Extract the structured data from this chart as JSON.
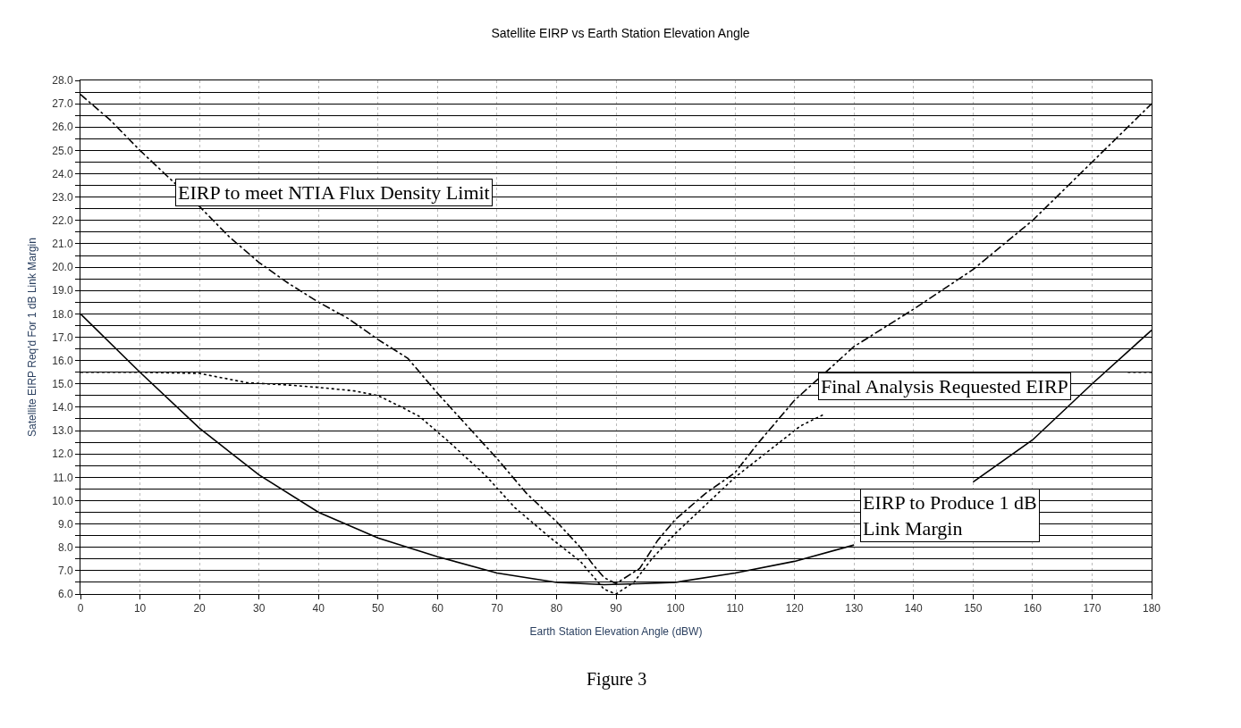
{
  "chart_data": {
    "type": "line",
    "title": "Satellite EIRP vs Earth Station Elevation Angle",
    "xlabel": "Earth Station Elevation Angle (dBW)",
    "ylabel": "Satellite EIRP Req'd For 1 dB Link Margin",
    "annotations": [
      "Figure 3"
    ],
    "series": [
      {
        "name": "EIRP to meet NTIA Flux Density Limit",
        "color": "#000000",
        "line_style": "dashed",
        "x": [
          0,
          5,
          10,
          15,
          20,
          25,
          30,
          35,
          40,
          45,
          50,
          55,
          60,
          65,
          70,
          75,
          80,
          84,
          86,
          88,
          90,
          94,
          97,
          100,
          105,
          110,
          114,
          118,
          120,
          130,
          140,
          150,
          160,
          170,
          180
        ],
        "values": [
          27.4,
          26.3,
          25.0,
          23.8,
          22.6,
          21.3,
          20.2,
          19.3,
          18.5,
          17.8,
          16.9,
          16.1,
          14.6,
          13.2,
          11.8,
          10.3,
          9.1,
          8.0,
          7.3,
          6.7,
          6.45,
          7.1,
          8.3,
          9.2,
          10.3,
          11.2,
          12.5,
          13.7,
          14.3,
          16.6,
          18.2,
          19.9,
          22.0,
          24.5,
          27.0
        ]
      },
      {
        "name": "Final Analysis Requested EIRP",
        "color": "#000000",
        "line_style": "dotted",
        "x": [
          0,
          10,
          20,
          28,
          35,
          40,
          46,
          50,
          54,
          57,
          62,
          68,
          73,
          79,
          84,
          88,
          90,
          93,
          96,
          100,
          105,
          110,
          116,
          121,
          125,
          130,
          140,
          150,
          160,
          170,
          176,
          180
        ],
        "values": [
          15.5,
          15.5,
          15.45,
          15.05,
          14.95,
          14.85,
          14.7,
          14.5,
          14.0,
          13.6,
          12.5,
          11.1,
          9.7,
          8.4,
          7.4,
          6.2,
          6.0,
          6.5,
          7.5,
          8.6,
          9.8,
          11.0,
          12.2,
          13.2,
          13.7,
          null,
          null,
          null,
          null,
          null,
          15.5,
          15.5
        ]
      },
      {
        "name": "EIRP to Produce 1 dB Link Margin",
        "color": "#000000",
        "line_style": "solid",
        "x": [
          0,
          10,
          20,
          30,
          40,
          50,
          60,
          70,
          80,
          88,
          95,
          100,
          110,
          120,
          130,
          140,
          150,
          160,
          170,
          180
        ],
        "values": [
          18.0,
          15.5,
          13.1,
          11.1,
          9.5,
          8.4,
          7.6,
          6.9,
          6.5,
          6.4,
          6.45,
          6.5,
          6.9,
          7.4,
          8.1,
          null,
          10.8,
          12.6,
          15.0,
          17.3
        ]
      }
    ],
    "marker": "none",
    "legend": false,
    "grid": true,
    "xlim": [
      0,
      180
    ],
    "xticks": [
      0,
      10,
      20,
      30,
      40,
      50,
      60,
      70,
      80,
      90,
      100,
      110,
      120,
      130,
      140,
      150,
      160,
      170,
      180
    ],
    "ylim": [
      6,
      28
    ],
    "yticks": [
      {
        "value": 6,
        "label": "6.0"
      },
      {
        "value": 6.5,
        "label": null
      },
      {
        "value": 7,
        "label": "7.0"
      },
      {
        "value": 7.5,
        "label": null
      },
      {
        "value": 8,
        "label": "8.0"
      },
      {
        "value": 8.5,
        "label": null
      },
      {
        "value": 9,
        "label": "9.0"
      },
      {
        "value": 9.5,
        "label": null
      },
      {
        "value": 10,
        "label": "10.0"
      },
      {
        "value": 10.5,
        "label": null
      },
      {
        "value": 11,
        "label": "11.0"
      },
      {
        "value": 11.5,
        "label": null
      },
      {
        "value": 12,
        "label": "12.0"
      },
      {
        "value": 12.5,
        "label": null
      },
      {
        "value": 13,
        "label": "13.0"
      },
      {
        "value": 13.5,
        "label": null
      },
      {
        "value": 14,
        "label": "14.0"
      },
      {
        "value": 14.5,
        "label": null
      },
      {
        "value": 15,
        "label": "15.0"
      },
      {
        "value": 15.5,
        "label": null
      },
      {
        "value": 16,
        "label": "16.0"
      },
      {
        "value": 16.5,
        "label": null
      },
      {
        "value": 17,
        "label": "17.0"
      },
      {
        "value": 17.5,
        "label": null
      },
      {
        "value": 18,
        "label": "18.0"
      },
      {
        "value": 18.5,
        "label": null
      },
      {
        "value": 19,
        "label": "19.0"
      },
      {
        "value": 19.5,
        "label": null
      },
      {
        "value": 20,
        "label": "20.0"
      },
      {
        "value": 20.5,
        "label": null
      },
      {
        "value": 21,
        "label": "21.0"
      },
      {
        "value": 21.5,
        "label": null
      },
      {
        "value": 22,
        "label": "22.0"
      },
      {
        "value": 22.5,
        "label": null
      },
      {
        "value": 23,
        "label": "23.0"
      },
      {
        "value": 23.5,
        "label": null
      },
      {
        "value": 24,
        "label": "24.0"
      },
      {
        "value": 24.5,
        "label": null
      },
      {
        "value": 25,
        "label": "25.0"
      },
      {
        "value": 25.5,
        "label": null
      },
      {
        "value": 26,
        "label": "26.0"
      },
      {
        "value": 26.5,
        "label": null
      },
      {
        "value": 27,
        "label": "27.0"
      },
      {
        "value": 27.5,
        "label": null
      },
      {
        "value": 28,
        "label": "28.0"
      }
    ]
  }
}
